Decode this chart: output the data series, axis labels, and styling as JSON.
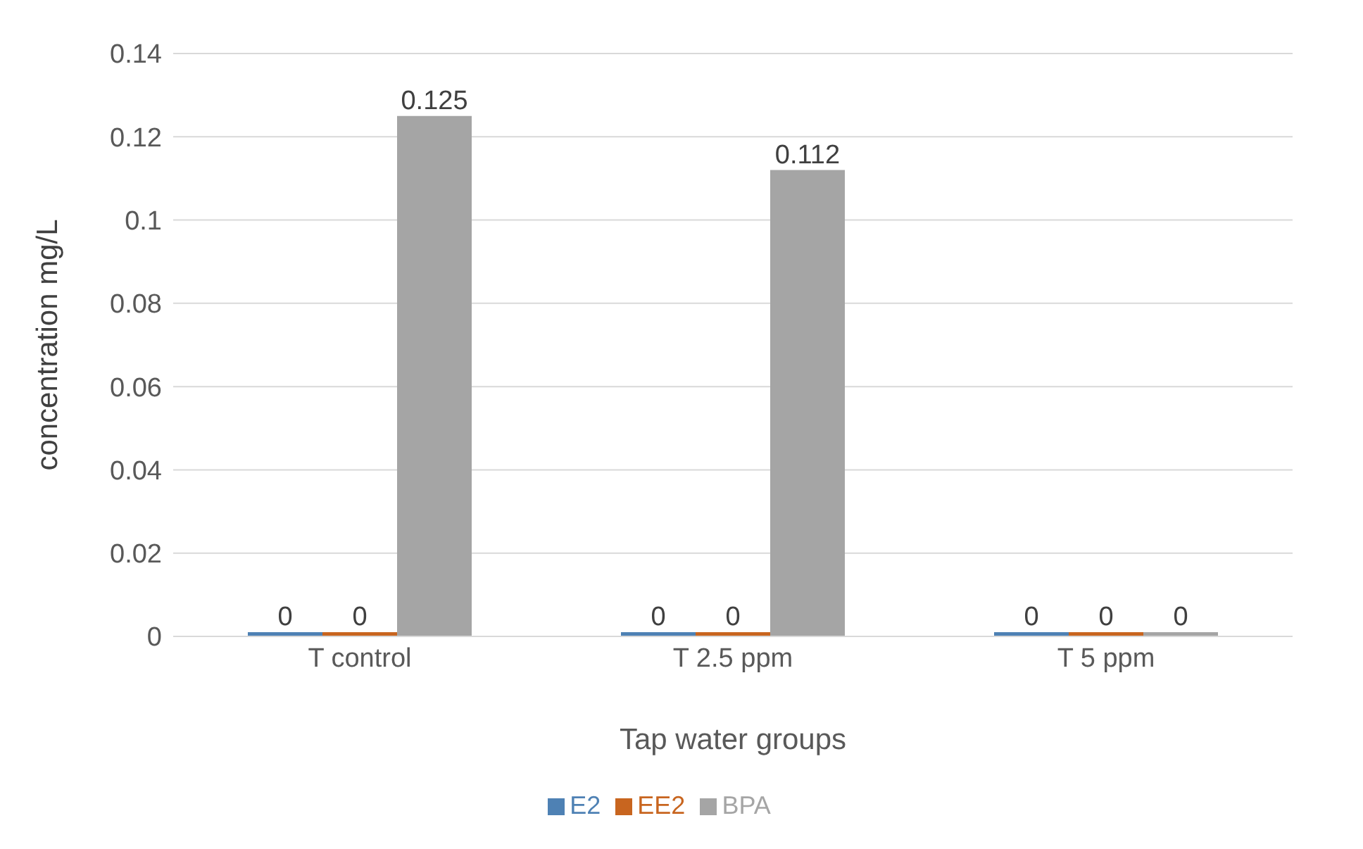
{
  "chart_data": {
    "type": "bar",
    "xlabel": "Tap water groups",
    "ylabel": "concentration mg/L",
    "categories": [
      "T control",
      "T 2.5 ppm",
      "T 5 ppm"
    ],
    "series": [
      {
        "name": "E2",
        "color": "#4e81b4",
        "values": [
          0,
          0,
          0
        ]
      },
      {
        "name": "EE2",
        "color": "#c8651f",
        "values": [
          0,
          0,
          0
        ]
      },
      {
        "name": "BPA",
        "color": "#a5a5a5",
        "values": [
          0.125,
          0.112,
          0
        ]
      }
    ],
    "ylim": [
      0,
      0.14
    ],
    "yticks": [
      0,
      0.02,
      0.04,
      0.06,
      0.08,
      0.1,
      0.12,
      0.14
    ],
    "grid": "y",
    "legend": "bottom",
    "data_labels": true
  }
}
